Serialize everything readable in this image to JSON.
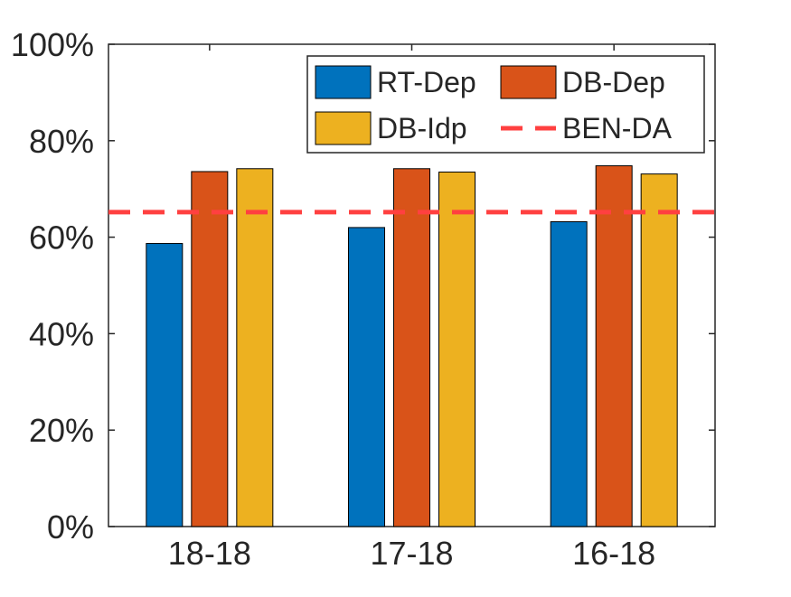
{
  "chart_data": {
    "type": "bar",
    "categories": [
      "18-18",
      "17-18",
      "16-18"
    ],
    "series": [
      {
        "name": "RT-Dep",
        "color": "#0072BD",
        "values": [
          58.7,
          62.0,
          63.2
        ]
      },
      {
        "name": "DB-Dep",
        "color": "#D95319",
        "values": [
          73.6,
          74.2,
          74.8
        ]
      },
      {
        "name": "DB-Idp",
        "color": "#EDB120",
        "values": [
          74.2,
          73.5,
          73.1
        ]
      }
    ],
    "reference_lines": [
      {
        "name": "BEN-DA",
        "value": 65.2,
        "color": "#FF4040",
        "style": "dashed"
      }
    ],
    "title": "",
    "xlabel": "",
    "ylabel": "",
    "ylim": [
      0,
      100
    ],
    "yticks": [
      0,
      20,
      40,
      60,
      80,
      100
    ],
    "ytick_labels": [
      "0%",
      "20%",
      "40%",
      "60%",
      "80%",
      "100%"
    ],
    "grid": false,
    "legend": {
      "placement": "top-right",
      "columns": 2,
      "entries": [
        "RT-Dep",
        "DB-Dep",
        "DB-Idp",
        "BEN-DA"
      ]
    }
  }
}
